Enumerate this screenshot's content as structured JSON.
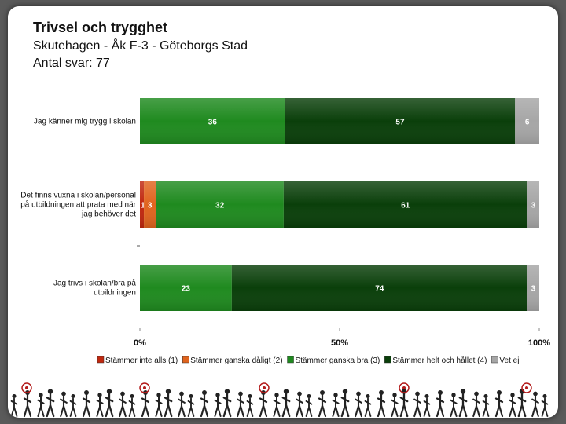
{
  "header": {
    "title": "Trivsel och trygghet",
    "subtitle": "Skutehagen - Åk F-3 - Göteborgs Stad",
    "responses": "Antal svar: 77"
  },
  "chart_data": {
    "type": "bar",
    "orientation": "horizontal",
    "stacked": "percent",
    "categories": [
      [
        "Jag känner mig trygg i skolan"
      ],
      [
        "Det finns vuxna i skolan/personal",
        "på utbildningen att prata med när",
        "jag behöver det"
      ],
      [
        "Jag trivs i skolan/bra på",
        "utbildningen"
      ]
    ],
    "series": [
      {
        "name": "Stämmer inte alls (1)",
        "color": "#c0280f",
        "values": [
          0,
          1,
          0
        ]
      },
      {
        "name": "Stämmer ganska dåligt (2)",
        "color": "#e0641e",
        "values": [
          0,
          3,
          0
        ]
      },
      {
        "name": "Stämmer ganska bra (3)",
        "color": "#1f8a1f",
        "values": [
          36,
          32,
          23
        ]
      },
      {
        "name": "Stämmer helt och hållet (4)",
        "color": "#0a3f0a",
        "values": [
          57,
          61,
          74
        ]
      },
      {
        "name": "Vet ej",
        "color": "#a6a6a6",
        "values": [
          6,
          3,
          3
        ]
      }
    ],
    "xaxis": {
      "ticks": [
        "0%",
        "50%",
        "100%"
      ],
      "range": [
        0,
        100
      ]
    },
    "legend_position": "bottom"
  }
}
